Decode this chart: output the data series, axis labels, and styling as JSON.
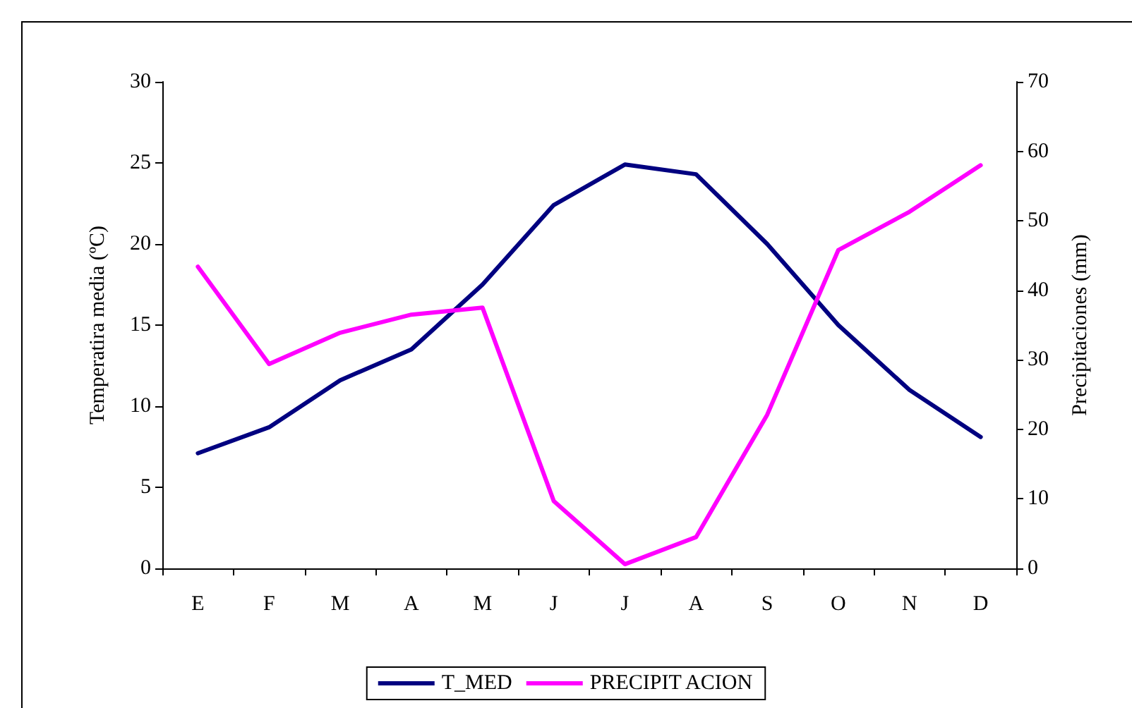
{
  "chart_data": {
    "type": "line",
    "ylabel": "Temperatira media (ºC)",
    "y2label": "Precipitaciones (mm)",
    "categories": [
      "E",
      "F",
      "M",
      "A",
      "M",
      "J",
      "J",
      "A",
      "S",
      "O",
      "N",
      "D"
    ],
    "series": [
      {
        "name": "T_MED",
        "color": "#000080",
        "values": [
          7.1,
          8.7,
          11.6,
          13.5,
          17.5,
          22.4,
          24.9,
          24.3,
          20.0,
          15.0,
          11.0,
          8.1
        ]
      },
      {
        "name": "PRECIPIT ACION",
        "color": "#ff00ff",
        "axis": "y2",
        "values": [
          43.4,
          29.4,
          33.9,
          36.5,
          37.5,
          9.7,
          0.6,
          4.5,
          22.1,
          45.8,
          51.3,
          58.0
        ]
      }
    ],
    "ylim": [
      0,
      30
    ],
    "yticks": [
      0,
      5,
      10,
      15,
      20,
      25,
      30
    ],
    "y2lim": [
      0,
      70
    ],
    "y2ticks": [
      0,
      10,
      20,
      30,
      40,
      50,
      60,
      70
    ],
    "grid": false,
    "legend": "bottom",
    "marker": "none",
    "line_style": "solid"
  }
}
